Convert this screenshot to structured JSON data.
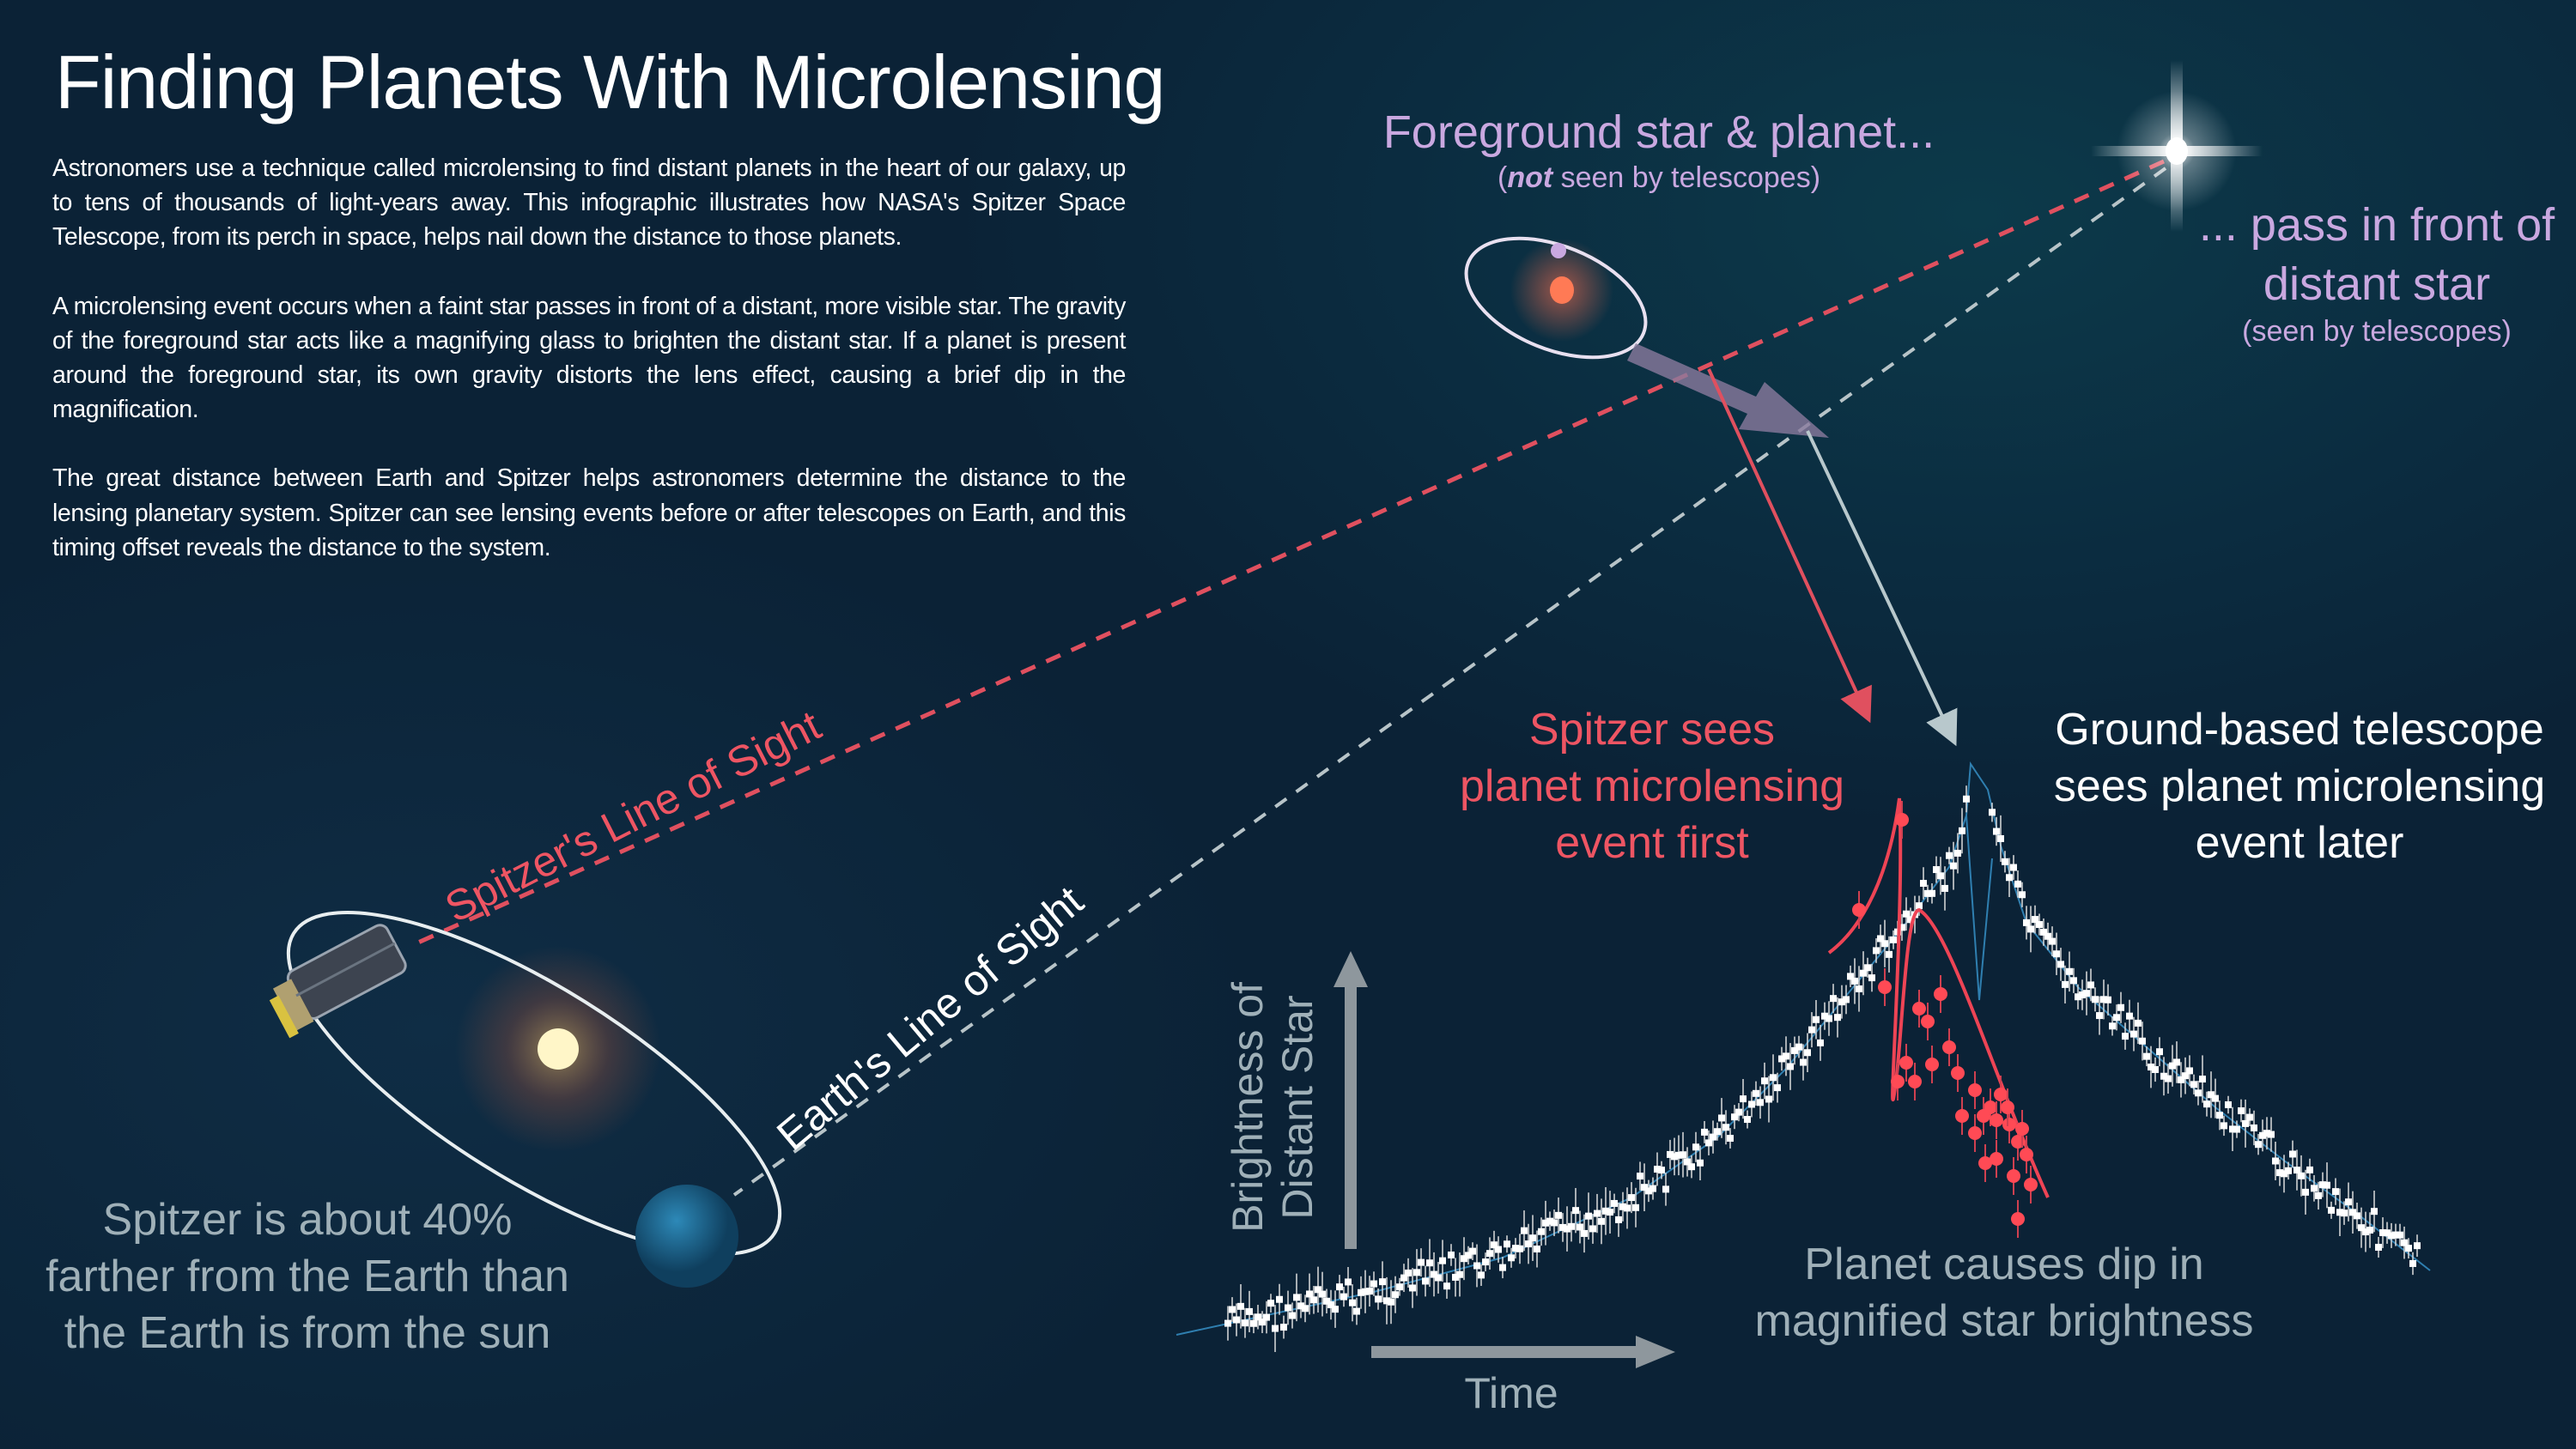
{
  "title": "Finding Planets With Microlensing",
  "intro": [
    "Astronomers use a technique called microlensing to find distant planets in the heart of our galaxy, up to tens of thousands of light-years away. This infographic illustrates how NASA's Spitzer Space Telescope, from its perch in space, helps nail down the distance to those planets.",
    "A microlensing event occurs when a faint star passes in front of a distant, more visible star. The gravity of the foreground star acts like a magnifying glass to brighten the distant star. If a planet is present around the foreground star, its own gravity distorts the lens effect, causing a brief dip in the magnification.",
    "The great distance between Earth and Spitzer helps astronomers determine the distance to the lensing planetary system. Spitzer can see lensing events before or after telescopes on Earth, and this timing offset reveals the distance to the system."
  ],
  "foreground": {
    "title": "Foreground star & planet...",
    "sub_open": "(",
    "sub_em": "not",
    "sub_rest": " seen by telescopes)"
  },
  "distant": {
    "line1": "... pass in front of",
    "line2": "distant star",
    "sub": "(seen by telescopes)"
  },
  "spitzer_los": "Spitzer's Line of Sight",
  "earth_los": "Earth's Line of Sight",
  "spitzer_distance": [
    "Spitzer is about 40%",
    "farther from the Earth than",
    "the Earth is from the sun"
  ],
  "spitzer_sees": [
    "Spitzer sees",
    "planet microlensing",
    "event first"
  ],
  "ground_sees": [
    "Ground-based telescope",
    "sees planet microlensing",
    "event later"
  ],
  "y_axis": [
    "Brightness of",
    "Distant Star"
  ],
  "x_axis": "Time",
  "dip_caption": [
    "Planet causes dip in",
    "magnified star brightness"
  ],
  "colors": {
    "spitzer": "#ee5563",
    "ground": "#ffffff",
    "label_purple": "#c9a8e0",
    "caption_grey": "#9fb0b8",
    "foreground_star": "#ff6a4a",
    "earth": "#1f6f9a",
    "sun": "#fff6c8"
  },
  "icons": [
    "distant-star-icon",
    "foreground-star-icon",
    "planet-icon",
    "sun-icon",
    "earth-icon",
    "spitzer-telescope-icon"
  ]
}
